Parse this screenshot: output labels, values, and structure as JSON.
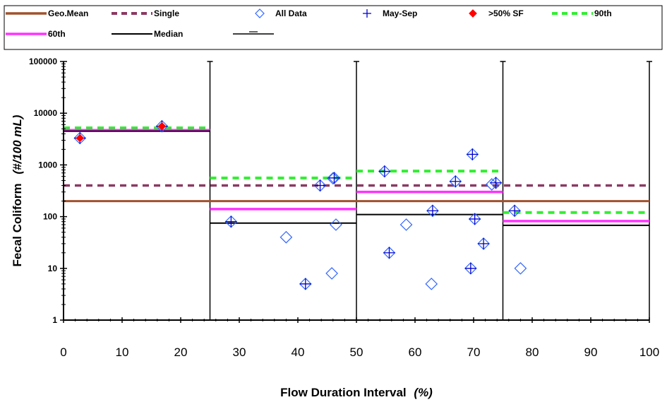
{
  "chart_data": {
    "type": "scatter",
    "title": "",
    "xlabel": "Flow Duration Interval",
    "xlabel_unit": "(%)",
    "ylabel": "Fecal Coliform",
    "ylabel_unit": "(#/100 mL)",
    "xlim": [
      0,
      100
    ],
    "ylim": [
      1,
      100000
    ],
    "yscale": "log",
    "xticks": [
      "0",
      "10",
      "20",
      "30",
      "40",
      "50",
      "60",
      "70",
      "80",
      "90",
      "100"
    ],
    "yticks": [
      "1",
      "10",
      "100",
      "1000",
      "10000",
      "100000"
    ],
    "grid": false,
    "legend_position": "top",
    "zone_boundaries": [
      25,
      50,
      75,
      100
    ],
    "legend": [
      {
        "key": "geomean",
        "label": "Geo.Mean"
      },
      {
        "key": "single",
        "label": "Single"
      },
      {
        "key": "alldata",
        "label": "All Data"
      },
      {
        "key": "maysep",
        "label": "May-Sep"
      },
      {
        "key": "sf",
        "label": ">50% SF"
      },
      {
        "key": "p90",
        "label": "90th"
      },
      {
        "key": "p60",
        "label": "60th"
      },
      {
        "key": "median",
        "label": "Median"
      },
      {
        "key": "errbar",
        "label": ""
      }
    ],
    "reference_lines": [
      {
        "name": "Geo.Mean",
        "y": 200,
        "x": [
          0,
          100
        ]
      },
      {
        "name": "Single",
        "y": 400,
        "x": [
          0,
          100
        ]
      }
    ],
    "interval_stats": [
      {
        "x": [
          0,
          25
        ],
        "p90": 5200,
        "p60": 4700,
        "median": 4500
      },
      {
        "x": [
          25,
          50
        ],
        "p90": 560,
        "p60": 140,
        "median": 75
      },
      {
        "x": [
          50,
          75
        ],
        "p90": 760,
        "p60": 300,
        "median": 110
      },
      {
        "x": [
          75,
          100
        ],
        "p90": 120,
        "p60": 82,
        "median": 68
      }
    ],
    "all_data": [
      {
        "x": 2.8,
        "y": 3300
      },
      {
        "x": 16.8,
        "y": 5600
      },
      {
        "x": 28.6,
        "y": 80
      },
      {
        "x": 38.0,
        "y": 40
      },
      {
        "x": 41.3,
        "y": 5
      },
      {
        "x": 43.8,
        "y": 400
      },
      {
        "x": 45.8,
        "y": 8
      },
      {
        "x": 46.0,
        "y": 550
      },
      {
        "x": 46.2,
        "y": 560
      },
      {
        "x": 46.5,
        "y": 70
      },
      {
        "x": 54.8,
        "y": 750
      },
      {
        "x": 55.6,
        "y": 20
      },
      {
        "x": 58.5,
        "y": 70
      },
      {
        "x": 62.8,
        "y": 5
      },
      {
        "x": 63.0,
        "y": 130
      },
      {
        "x": 66.9,
        "y": 480
      },
      {
        "x": 69.5,
        "y": 10
      },
      {
        "x": 69.8,
        "y": 1600
      },
      {
        "x": 70.2,
        "y": 90
      },
      {
        "x": 71.7,
        "y": 30
      },
      {
        "x": 73.1,
        "y": 420
      },
      {
        "x": 73.8,
        "y": 450
      },
      {
        "x": 77.0,
        "y": 130
      },
      {
        "x": 78.0,
        "y": 10
      }
    ],
    "may_sep": [
      {
        "x": 2.8,
        "y": 3300
      },
      {
        "x": 16.8,
        "y": 5600
      },
      {
        "x": 28.6,
        "y": 80
      },
      {
        "x": 41.3,
        "y": 5
      },
      {
        "x": 43.8,
        "y": 400
      },
      {
        "x": 46.2,
        "y": 560
      },
      {
        "x": 54.8,
        "y": 750
      },
      {
        "x": 55.6,
        "y": 20
      },
      {
        "x": 63.0,
        "y": 130
      },
      {
        "x": 66.9,
        "y": 480
      },
      {
        "x": 69.5,
        "y": 10
      },
      {
        "x": 69.8,
        "y": 1600
      },
      {
        "x": 70.2,
        "y": 90
      },
      {
        "x": 71.7,
        "y": 30
      },
      {
        "x": 73.8,
        "y": 450
      },
      {
        "x": 77.0,
        "y": 130
      }
    ],
    "sf_data": [
      {
        "x": 2.8,
        "y": 3300
      },
      {
        "x": 16.8,
        "y": 5600
      }
    ],
    "colors": {
      "geomean": "#a0522d",
      "single": "#8b3a62",
      "alldata": "#3366ff",
      "maysep": "#0000cc",
      "sf": "#ff0000",
      "p90": "#33ee33",
      "p60": "#ff33ff",
      "median": "#000000"
    }
  }
}
